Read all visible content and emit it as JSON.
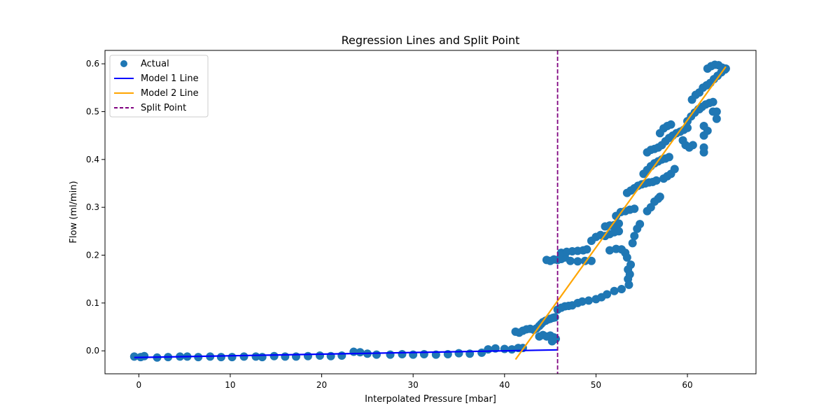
{
  "chart_data": {
    "type": "scatter",
    "title": "Regression Lines and Split Point",
    "xlabel": "Interpolated Pressure [mbar]",
    "ylabel": "Flow (ml/min)",
    "xlim": [
      -3.7,
      67.5
    ],
    "ylim": [
      -0.048,
      0.628
    ],
    "x_ticks": [
      0,
      10,
      20,
      30,
      40,
      50,
      60
    ],
    "y_ticks": [
      0.0,
      0.1,
      0.2,
      0.3,
      0.4,
      0.5,
      0.6
    ],
    "x_tick_labels": [
      "0",
      "10",
      "20",
      "30",
      "40",
      "50",
      "60"
    ],
    "y_tick_labels": [
      "0.0",
      "0.1",
      "0.2",
      "0.3",
      "0.4",
      "0.5",
      "0.6"
    ],
    "grid": false,
    "legend_position": "top-left",
    "legend": [
      {
        "label": "Actual",
        "kind": "marker",
        "color": "#1f77b4"
      },
      {
        "label": "Model 1 Line",
        "kind": "line",
        "color": "#0000ff"
      },
      {
        "label": "Model 2 Line",
        "kind": "line",
        "color": "#ffa500"
      },
      {
        "label": "Split Point",
        "kind": "dashed",
        "color": "#800080"
      }
    ],
    "series": [
      {
        "name": "Actual",
        "kind": "scatter",
        "color": "#1f77b4",
        "points": [
          [
            -0.5,
            -0.012
          ],
          [
            0.2,
            -0.013
          ],
          [
            0.6,
            -0.011
          ],
          [
            2.0,
            -0.014
          ],
          [
            3.2,
            -0.013
          ],
          [
            4.5,
            -0.012
          ],
          [
            5.3,
            -0.012
          ],
          [
            6.5,
            -0.013
          ],
          [
            7.8,
            -0.012
          ],
          [
            9.0,
            -0.013
          ],
          [
            10.2,
            -0.013
          ],
          [
            11.5,
            -0.012
          ],
          [
            12.8,
            -0.012
          ],
          [
            13.5,
            -0.013
          ],
          [
            14.8,
            -0.011
          ],
          [
            16.0,
            -0.012
          ],
          [
            17.2,
            -0.012
          ],
          [
            18.5,
            -0.011
          ],
          [
            19.8,
            -0.01
          ],
          [
            21.0,
            -0.011
          ],
          [
            22.2,
            -0.01
          ],
          [
            23.5,
            -0.002
          ],
          [
            24.2,
            -0.003
          ],
          [
            25.0,
            -0.006
          ],
          [
            26.0,
            -0.008
          ],
          [
            27.5,
            -0.008
          ],
          [
            28.8,
            -0.007
          ],
          [
            30.0,
            -0.008
          ],
          [
            31.2,
            -0.007
          ],
          [
            32.5,
            -0.008
          ],
          [
            33.8,
            -0.007
          ],
          [
            35.0,
            -0.005
          ],
          [
            36.2,
            -0.006
          ],
          [
            37.5,
            -0.004
          ],
          [
            38.2,
            0.003
          ],
          [
            39.0,
            0.005
          ],
          [
            40.0,
            0.004
          ],
          [
            40.8,
            0.003
          ],
          [
            41.5,
            0.006
          ],
          [
            42.0,
            0.006
          ],
          [
            41.2,
            0.04
          ],
          [
            41.6,
            0.038
          ],
          [
            42.0,
            0.042
          ],
          [
            42.4,
            0.045
          ],
          [
            42.8,
            0.046
          ],
          [
            43.2,
            0.044
          ],
          [
            43.5,
            0.047
          ],
          [
            43.8,
            0.052
          ],
          [
            44.0,
            0.056
          ],
          [
            44.2,
            0.06
          ],
          [
            44.5,
            0.063
          ],
          [
            44.8,
            0.066
          ],
          [
            45.0,
            0.067
          ],
          [
            45.3,
            0.069
          ],
          [
            45.5,
            0.07
          ],
          [
            44.6,
            0.03
          ],
          [
            45.0,
            0.032
          ],
          [
            45.4,
            0.028
          ],
          [
            45.6,
            0.025
          ],
          [
            45.2,
            0.02
          ],
          [
            44.2,
            0.033
          ],
          [
            43.8,
            0.03
          ],
          [
            45.8,
            0.086
          ],
          [
            46.2,
            0.09
          ],
          [
            46.6,
            0.093
          ],
          [
            47.0,
            0.094
          ],
          [
            47.4,
            0.095
          ],
          [
            48.0,
            0.1
          ],
          [
            48.5,
            0.103
          ],
          [
            49.2,
            0.105
          ],
          [
            50.0,
            0.108
          ],
          [
            50.6,
            0.112
          ],
          [
            51.2,
            0.118
          ],
          [
            52.0,
            0.125
          ],
          [
            52.8,
            0.129
          ],
          [
            44.6,
            0.19
          ],
          [
            45.0,
            0.188
          ],
          [
            45.4,
            0.191
          ],
          [
            45.8,
            0.19
          ],
          [
            46.2,
            0.192
          ],
          [
            46.6,
            0.195
          ],
          [
            46.2,
            0.205
          ],
          [
            46.8,
            0.207
          ],
          [
            47.4,
            0.208
          ],
          [
            48.0,
            0.209
          ],
          [
            48.6,
            0.21
          ],
          [
            49.0,
            0.212
          ],
          [
            47.2,
            0.188
          ],
          [
            48.0,
            0.187
          ],
          [
            48.8,
            0.188
          ],
          [
            49.5,
            0.188
          ],
          [
            49.5,
            0.23
          ],
          [
            50.0,
            0.238
          ],
          [
            50.5,
            0.242
          ],
          [
            51.0,
            0.24
          ],
          [
            51.5,
            0.244
          ],
          [
            52.0,
            0.248
          ],
          [
            52.5,
            0.25
          ],
          [
            51.5,
            0.21
          ],
          [
            52.2,
            0.213
          ],
          [
            52.8,
            0.212
          ],
          [
            53.2,
            0.205
          ],
          [
            53.4,
            0.195
          ],
          [
            53.5,
            0.17
          ],
          [
            53.5,
            0.15
          ],
          [
            53.6,
            0.138
          ],
          [
            53.7,
            0.16
          ],
          [
            53.8,
            0.18
          ],
          [
            54.0,
            0.225
          ],
          [
            54.2,
            0.24
          ],
          [
            54.5,
            0.255
          ],
          [
            54.8,
            0.265
          ],
          [
            51.0,
            0.26
          ],
          [
            51.5,
            0.262
          ],
          [
            52.0,
            0.263
          ],
          [
            52.5,
            0.266
          ],
          [
            52.2,
            0.282
          ],
          [
            52.7,
            0.29
          ],
          [
            53.2,
            0.292
          ],
          [
            53.7,
            0.295
          ],
          [
            54.2,
            0.297
          ],
          [
            53.4,
            0.33
          ],
          [
            53.8,
            0.335
          ],
          [
            54.2,
            0.34
          ],
          [
            54.6,
            0.345
          ],
          [
            55.0,
            0.348
          ],
          [
            55.4,
            0.35
          ],
          [
            55.8,
            0.352
          ],
          [
            56.2,
            0.353
          ],
          [
            56.6,
            0.356
          ],
          [
            56.4,
            0.312
          ],
          [
            56.8,
            0.318
          ],
          [
            57.0,
            0.322
          ],
          [
            56.0,
            0.3
          ],
          [
            55.6,
            0.292
          ],
          [
            55.2,
            0.37
          ],
          [
            55.6,
            0.378
          ],
          [
            56.0,
            0.386
          ],
          [
            56.4,
            0.392
          ],
          [
            56.8,
            0.396
          ],
          [
            57.2,
            0.4
          ],
          [
            57.6,
            0.402
          ],
          [
            58.0,
            0.405
          ],
          [
            57.4,
            0.36
          ],
          [
            57.8,
            0.365
          ],
          [
            58.2,
            0.37
          ],
          [
            58.6,
            0.38
          ],
          [
            55.6,
            0.415
          ],
          [
            56.0,
            0.42
          ],
          [
            56.4,
            0.422
          ],
          [
            56.8,
            0.425
          ],
          [
            57.2,
            0.43
          ],
          [
            57.6,
            0.438
          ],
          [
            58.0,
            0.445
          ],
          [
            58.4,
            0.45
          ],
          [
            58.8,
            0.455
          ],
          [
            59.2,
            0.458
          ],
          [
            59.6,
            0.462
          ],
          [
            60.0,
            0.466
          ],
          [
            57.0,
            0.455
          ],
          [
            57.4,
            0.465
          ],
          [
            57.8,
            0.47
          ],
          [
            58.2,
            0.473
          ],
          [
            59.5,
            0.44
          ],
          [
            59.8,
            0.43
          ],
          [
            60.2,
            0.425
          ],
          [
            60.6,
            0.43
          ],
          [
            60.0,
            0.48
          ],
          [
            60.4,
            0.49
          ],
          [
            60.8,
            0.498
          ],
          [
            61.2,
            0.505
          ],
          [
            61.6,
            0.51
          ],
          [
            62.0,
            0.515
          ],
          [
            62.4,
            0.518
          ],
          [
            62.8,
            0.52
          ],
          [
            61.8,
            0.47
          ],
          [
            61.8,
            0.45
          ],
          [
            61.8,
            0.425
          ],
          [
            61.8,
            0.415
          ],
          [
            62.2,
            0.46
          ],
          [
            60.5,
            0.525
          ],
          [
            60.9,
            0.535
          ],
          [
            61.3,
            0.54
          ],
          [
            61.7,
            0.55
          ],
          [
            62.1,
            0.555
          ],
          [
            62.5,
            0.56
          ],
          [
            62.9,
            0.568
          ],
          [
            63.3,
            0.575
          ],
          [
            63.7,
            0.582
          ],
          [
            64.1,
            0.588
          ],
          [
            62.2,
            0.59
          ],
          [
            62.6,
            0.595
          ],
          [
            63.0,
            0.598
          ],
          [
            63.4,
            0.597
          ],
          [
            63.8,
            0.592
          ],
          [
            64.2,
            0.59
          ],
          [
            61.3,
            0.505
          ],
          [
            62.8,
            0.5
          ],
          [
            63.2,
            0.5
          ],
          [
            63.2,
            0.485
          ]
        ]
      },
      {
        "name": "Model 1 Line",
        "kind": "line",
        "color": "#0000ff",
        "x": [
          -0.5,
          45.8
        ],
        "y": [
          -0.014,
          0.002
        ]
      },
      {
        "name": "Model 2 Line",
        "kind": "line",
        "color": "#ffa500",
        "x": [
          41.2,
          64.2
        ],
        "y": [
          -0.018,
          0.594
        ]
      },
      {
        "name": "Split Point",
        "kind": "vline",
        "color": "#800080",
        "x": 45.8
      }
    ]
  }
}
